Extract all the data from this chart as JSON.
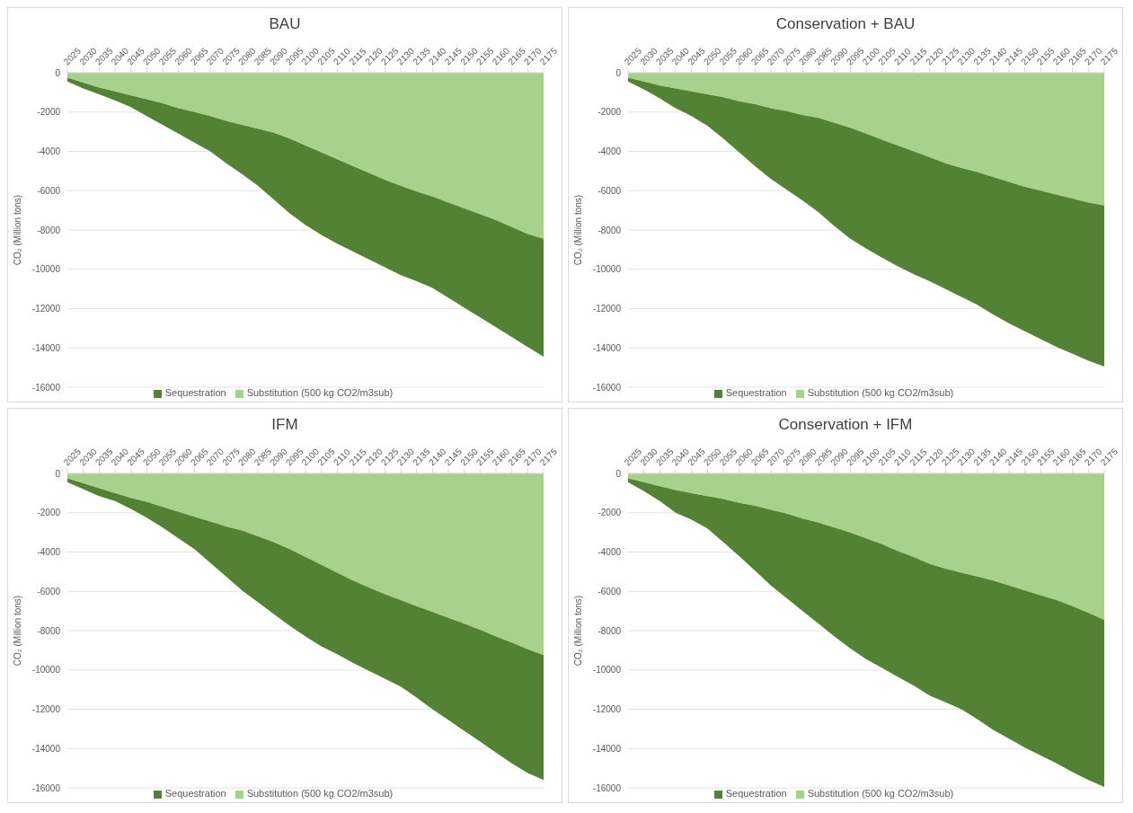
{
  "chart_data": [
    {
      "type": "area",
      "title": "BAU",
      "ylabel": "CO₂ (Million tons)",
      "stacked": true,
      "grid": "y",
      "legend": "bottom",
      "ylim": [
        -16000,
        0
      ],
      "yticks": [
        -16000,
        -14000,
        -12000,
        -10000,
        -8000,
        -6000,
        -4000,
        -2000,
        0
      ],
      "categories": [
        "2025",
        "2030",
        "2035",
        "2040",
        "2045",
        "2050",
        "2055",
        "2060",
        "2065",
        "2070",
        "2075",
        "2080",
        "2085",
        "2090",
        "2095",
        "2100",
        "2105",
        "2110",
        "2115",
        "2120",
        "2125",
        "2130",
        "2135",
        "2140",
        "2145",
        "2150",
        "2155",
        "2160",
        "2165",
        "2170",
        "2175"
      ],
      "series": [
        {
          "name": "Substitution (500 kg CO2/m3sub)",
          "color": "#a9d18e",
          "values": [
            -250,
            -500,
            -750,
            -950,
            -1150,
            -1350,
            -1550,
            -1800,
            -2000,
            -2200,
            -2450,
            -2650,
            -2850,
            -3050,
            -3350,
            -3700,
            -4050,
            -4400,
            -4750,
            -5100,
            -5450,
            -5750,
            -6050,
            -6300,
            -6600,
            -6900,
            -7200,
            -7500,
            -7850,
            -8200,
            -8450
          ]
        },
        {
          "name": "Sequestration",
          "color": "#548235",
          "values": [
            -200,
            -300,
            -350,
            -450,
            -600,
            -850,
            -1100,
            -1300,
            -1550,
            -1800,
            -2150,
            -2500,
            -2900,
            -3400,
            -3800,
            -4050,
            -4200,
            -4300,
            -4350,
            -4400,
            -4450,
            -4550,
            -4550,
            -4650,
            -4850,
            -5050,
            -5250,
            -5450,
            -5600,
            -5750,
            -6000
          ]
        }
      ]
    },
    {
      "type": "area",
      "title": "Conservation + BAU",
      "ylabel": "CO₂ (Million tons)",
      "stacked": true,
      "grid": "y",
      "legend": "bottom",
      "ylim": [
        -16000,
        0
      ],
      "yticks": [
        -16000,
        -14000,
        -12000,
        -10000,
        -8000,
        -6000,
        -4000,
        -2000,
        0
      ],
      "categories": [
        "2025",
        "2030",
        "2035",
        "2040",
        "2045",
        "2050",
        "2055",
        "2060",
        "2065",
        "2070",
        "2075",
        "2080",
        "2085",
        "2090",
        "2095",
        "2100",
        "2105",
        "2110",
        "2115",
        "2120",
        "2125",
        "2130",
        "2135",
        "2140",
        "2145",
        "2150",
        "2155",
        "2160",
        "2165",
        "2170",
        "2175"
      ],
      "series": [
        {
          "name": "Substitution (500 kg CO2/m3sub)",
          "color": "#a9d18e",
          "values": [
            -250,
            -450,
            -650,
            -800,
            -950,
            -1100,
            -1250,
            -1450,
            -1600,
            -1800,
            -1950,
            -2150,
            -2300,
            -2550,
            -2800,
            -3100,
            -3400,
            -3700,
            -4000,
            -4300,
            -4600,
            -4850,
            -5050,
            -5300,
            -5550,
            -5800,
            -6000,
            -6200,
            -6400,
            -6600,
            -6750
          ]
        },
        {
          "name": "Sequestration",
          "color": "#548235",
          "values": [
            -200,
            -400,
            -650,
            -1000,
            -1250,
            -1600,
            -2100,
            -2600,
            -3150,
            -3600,
            -4000,
            -4350,
            -4800,
            -5250,
            -5650,
            -5850,
            -6000,
            -6150,
            -6250,
            -6300,
            -6400,
            -6550,
            -6750,
            -7000,
            -7200,
            -7350,
            -7550,
            -7750,
            -7900,
            -8050,
            -8200
          ]
        }
      ]
    },
    {
      "type": "area",
      "title": "IFM",
      "ylabel": "CO₂ (Million tons)",
      "stacked": true,
      "grid": "y",
      "legend": "bottom",
      "ylim": [
        -16000,
        0
      ],
      "yticks": [
        -16000,
        -14000,
        -12000,
        -10000,
        -8000,
        -6000,
        -4000,
        -2000,
        0
      ],
      "categories": [
        "2025",
        "2030",
        "2035",
        "2040",
        "2045",
        "2050",
        "2055",
        "2060",
        "2065",
        "2070",
        "2075",
        "2080",
        "2085",
        "2090",
        "2095",
        "2100",
        "2105",
        "2110",
        "2115",
        "2120",
        "2125",
        "2130",
        "2135",
        "2140",
        "2145",
        "2150",
        "2155",
        "2160",
        "2165",
        "2170",
        "2175"
      ],
      "series": [
        {
          "name": "Substitution (500 kg CO2/m3sub)",
          "color": "#a9d18e",
          "values": [
            -250,
            -500,
            -750,
            -1000,
            -1250,
            -1450,
            -1700,
            -1950,
            -2200,
            -2450,
            -2700,
            -2900,
            -3200,
            -3500,
            -3850,
            -4250,
            -4650,
            -5050,
            -5450,
            -5800,
            -6150,
            -6450,
            -6750,
            -7050,
            -7350,
            -7650,
            -7950,
            -8300,
            -8600,
            -8950,
            -9250
          ]
        },
        {
          "name": "Sequestration",
          "color": "#548235",
          "values": [
            -200,
            -300,
            -400,
            -400,
            -550,
            -800,
            -1050,
            -1350,
            -1650,
            -2100,
            -2550,
            -3050,
            -3350,
            -3650,
            -3900,
            -4050,
            -4150,
            -4150,
            -4200,
            -4250,
            -4300,
            -4400,
            -4650,
            -4950,
            -5200,
            -5450,
            -5700,
            -5900,
            -6150,
            -6300,
            -6350
          ]
        }
      ]
    },
    {
      "type": "area",
      "title": "Conservation + IFM",
      "ylabel": "CO₂ (Million tons)",
      "stacked": true,
      "grid": "y",
      "legend": "bottom",
      "ylim": [
        -16000,
        0
      ],
      "yticks": [
        -16000,
        -14000,
        -12000,
        -10000,
        -8000,
        -6000,
        -4000,
        -2000,
        0
      ],
      "categories": [
        "2025",
        "2030",
        "2035",
        "2040",
        "2045",
        "2050",
        "2055",
        "2060",
        "2065",
        "2070",
        "2075",
        "2080",
        "2085",
        "2090",
        "2095",
        "2100",
        "2105",
        "2110",
        "2115",
        "2120",
        "2125",
        "2130",
        "2135",
        "2140",
        "2145",
        "2150",
        "2155",
        "2160",
        "2165",
        "2170",
        "2175"
      ],
      "series": [
        {
          "name": "Substitution (500 kg CO2/m3sub)",
          "color": "#a9d18e",
          "values": [
            -250,
            -450,
            -650,
            -850,
            -1000,
            -1150,
            -1300,
            -1500,
            -1650,
            -1850,
            -2050,
            -2300,
            -2500,
            -2750,
            -3000,
            -3300,
            -3600,
            -3950,
            -4250,
            -4600,
            -4850,
            -5050,
            -5250,
            -5450,
            -5700,
            -5950,
            -6200,
            -6450,
            -6750,
            -7100,
            -7450
          ]
        },
        {
          "name": "Sequestration",
          "color": "#548235",
          "values": [
            -200,
            -450,
            -750,
            -1150,
            -1350,
            -1650,
            -2200,
            -2700,
            -3300,
            -3850,
            -4300,
            -4700,
            -5150,
            -5550,
            -5900,
            -6150,
            -6300,
            -6400,
            -6550,
            -6700,
            -6800,
            -6950,
            -7250,
            -7600,
            -7800,
            -8000,
            -8150,
            -8300,
            -8450,
            -8500,
            -8500
          ]
        }
      ]
    }
  ]
}
